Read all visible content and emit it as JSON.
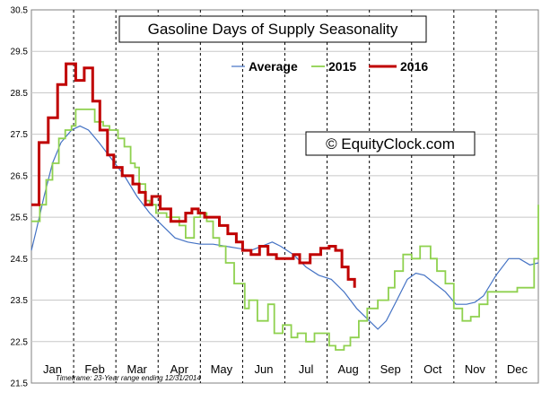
{
  "chart_data": {
    "type": "line",
    "title": "Gasoline Days of Supply Seasonality",
    "watermark": "© EquityClock.com",
    "footnote": "Timeframe: 23-Year range ending 12/31/2014",
    "x_categories": [
      "Jan",
      "Feb",
      "Mar",
      "Apr",
      "May",
      "Jun",
      "Jul",
      "Aug",
      "Sep",
      "Oct",
      "Nov",
      "Dec"
    ],
    "ylim": [
      21.5,
      30.5
    ],
    "y_ticks": [
      "21.5",
      "22.5",
      "23.5",
      "24.5",
      "25.5",
      "26.5",
      "27.5",
      "28.5",
      "29.5",
      "30.5"
    ],
    "x_unit": "month (0 = start of Jan, 12 = end of Dec)",
    "grid": true,
    "legend_position": "top-center",
    "series": [
      {
        "name": "Average",
        "color": "#4472c4",
        "style": "thin",
        "points": [
          [
            0,
            24.7
          ],
          [
            0.12,
            25.2
          ],
          [
            0.3,
            26.0
          ],
          [
            0.5,
            26.8
          ],
          [
            0.7,
            27.3
          ],
          [
            0.95,
            27.6
          ],
          [
            1.15,
            27.7
          ],
          [
            1.35,
            27.6
          ],
          [
            1.6,
            27.3
          ],
          [
            1.9,
            26.9
          ],
          [
            2.2,
            26.5
          ],
          [
            2.5,
            26.0
          ],
          [
            2.8,
            25.6
          ],
          [
            3.1,
            25.3
          ],
          [
            3.4,
            25.0
          ],
          [
            3.7,
            24.9
          ],
          [
            4.0,
            24.85
          ],
          [
            4.3,
            24.85
          ],
          [
            4.6,
            24.8
          ],
          [
            4.9,
            24.75
          ],
          [
            5.2,
            24.7
          ],
          [
            5.45,
            24.8
          ],
          [
            5.7,
            24.9
          ],
          [
            5.9,
            24.8
          ],
          [
            6.2,
            24.6
          ],
          [
            6.5,
            24.3
          ],
          [
            6.8,
            24.1
          ],
          [
            7.1,
            24.0
          ],
          [
            7.4,
            23.7
          ],
          [
            7.7,
            23.3
          ],
          [
            8.0,
            23.0
          ],
          [
            8.2,
            22.8
          ],
          [
            8.4,
            23.0
          ],
          [
            8.65,
            23.5
          ],
          [
            8.9,
            24.0
          ],
          [
            9.1,
            24.15
          ],
          [
            9.3,
            24.1
          ],
          [
            9.55,
            23.9
          ],
          [
            9.8,
            23.7
          ],
          [
            10.05,
            23.4
          ],
          [
            10.3,
            23.4
          ],
          [
            10.5,
            23.45
          ],
          [
            10.7,
            23.6
          ],
          [
            11.0,
            24.1
          ],
          [
            11.3,
            24.5
          ],
          [
            11.55,
            24.5
          ],
          [
            11.8,
            24.35
          ],
          [
            12.0,
            24.4
          ]
        ]
      },
      {
        "name": "2015",
        "color": "#8fd14f",
        "style": "step",
        "points": [
          [
            0,
            25.4
          ],
          [
            0.2,
            25.8
          ],
          [
            0.35,
            26.4
          ],
          [
            0.5,
            26.8
          ],
          [
            0.65,
            27.4
          ],
          [
            0.8,
            27.6
          ],
          [
            0.95,
            27.7
          ],
          [
            1.05,
            28.1
          ],
          [
            1.5,
            27.8
          ],
          [
            1.7,
            27.7
          ],
          [
            1.85,
            27.6
          ],
          [
            2.05,
            27.4
          ],
          [
            2.2,
            27.2
          ],
          [
            2.35,
            26.8
          ],
          [
            2.45,
            26.7
          ],
          [
            2.55,
            26.3
          ],
          [
            2.7,
            25.9
          ],
          [
            2.8,
            25.8
          ],
          [
            2.95,
            25.6
          ],
          [
            3.2,
            25.5
          ],
          [
            3.35,
            25.5
          ],
          [
            3.5,
            25.3
          ],
          [
            3.65,
            25.0
          ],
          [
            3.85,
            25.5
          ],
          [
            4.0,
            25.6
          ],
          [
            4.15,
            25.4
          ],
          [
            4.3,
            25.0
          ],
          [
            4.45,
            24.8
          ],
          [
            4.6,
            24.4
          ],
          [
            4.8,
            23.9
          ],
          [
            5.05,
            23.3
          ],
          [
            5.15,
            23.5
          ],
          [
            5.35,
            23.0
          ],
          [
            5.6,
            23.4
          ],
          [
            5.75,
            22.7
          ],
          [
            5.95,
            22.9
          ],
          [
            6.15,
            22.6
          ],
          [
            6.3,
            22.7
          ],
          [
            6.5,
            22.5
          ],
          [
            6.7,
            22.7
          ],
          [
            7.05,
            22.4
          ],
          [
            7.2,
            22.3
          ],
          [
            7.4,
            22.4
          ],
          [
            7.55,
            22.6
          ],
          [
            7.75,
            23.0
          ],
          [
            7.95,
            23.3
          ],
          [
            8.2,
            23.5
          ],
          [
            8.45,
            23.8
          ],
          [
            8.6,
            24.2
          ],
          [
            8.8,
            24.6
          ],
          [
            9.0,
            24.5
          ],
          [
            9.2,
            24.8
          ],
          [
            9.45,
            24.5
          ],
          [
            9.6,
            24.2
          ],
          [
            9.8,
            23.9
          ],
          [
            10.0,
            23.3
          ],
          [
            10.2,
            23.0
          ],
          [
            10.4,
            23.1
          ],
          [
            10.6,
            23.4
          ],
          [
            10.8,
            23.7
          ],
          [
            11.0,
            23.7
          ],
          [
            11.25,
            23.7
          ],
          [
            11.5,
            23.8
          ],
          [
            11.8,
            23.8
          ],
          [
            11.9,
            24.5
          ],
          [
            12.0,
            25.8
          ]
        ]
      },
      {
        "name": "2016",
        "color": "#c00000",
        "style": "step-thick",
        "points": [
          [
            0,
            25.8
          ],
          [
            0.18,
            27.3
          ],
          [
            0.4,
            27.9
          ],
          [
            0.62,
            28.7
          ],
          [
            0.82,
            29.2
          ],
          [
            1.05,
            28.8
          ],
          [
            1.25,
            29.1
          ],
          [
            1.45,
            28.3
          ],
          [
            1.62,
            27.6
          ],
          [
            1.8,
            27.0
          ],
          [
            1.95,
            26.7
          ],
          [
            2.15,
            26.5
          ],
          [
            2.4,
            26.3
          ],
          [
            2.55,
            26.1
          ],
          [
            2.7,
            25.8
          ],
          [
            2.85,
            26.0
          ],
          [
            3.05,
            25.7
          ],
          [
            3.3,
            25.4
          ],
          [
            3.45,
            25.4
          ],
          [
            3.65,
            25.6
          ],
          [
            3.8,
            25.7
          ],
          [
            3.95,
            25.6
          ],
          [
            4.1,
            25.5
          ],
          [
            4.3,
            25.5
          ],
          [
            4.45,
            25.3
          ],
          [
            4.65,
            25.1
          ],
          [
            4.85,
            24.9
          ],
          [
            5.0,
            24.7
          ],
          [
            5.2,
            24.6
          ],
          [
            5.4,
            24.8
          ],
          [
            5.6,
            24.6
          ],
          [
            5.8,
            24.5
          ],
          [
            6.0,
            24.5
          ],
          [
            6.2,
            24.6
          ],
          [
            6.35,
            24.4
          ],
          [
            6.6,
            24.6
          ],
          [
            6.85,
            24.75
          ],
          [
            7.05,
            24.8
          ],
          [
            7.2,
            24.7
          ],
          [
            7.35,
            24.3
          ],
          [
            7.5,
            24.0
          ],
          [
            7.65,
            23.8
          ]
        ]
      }
    ]
  }
}
